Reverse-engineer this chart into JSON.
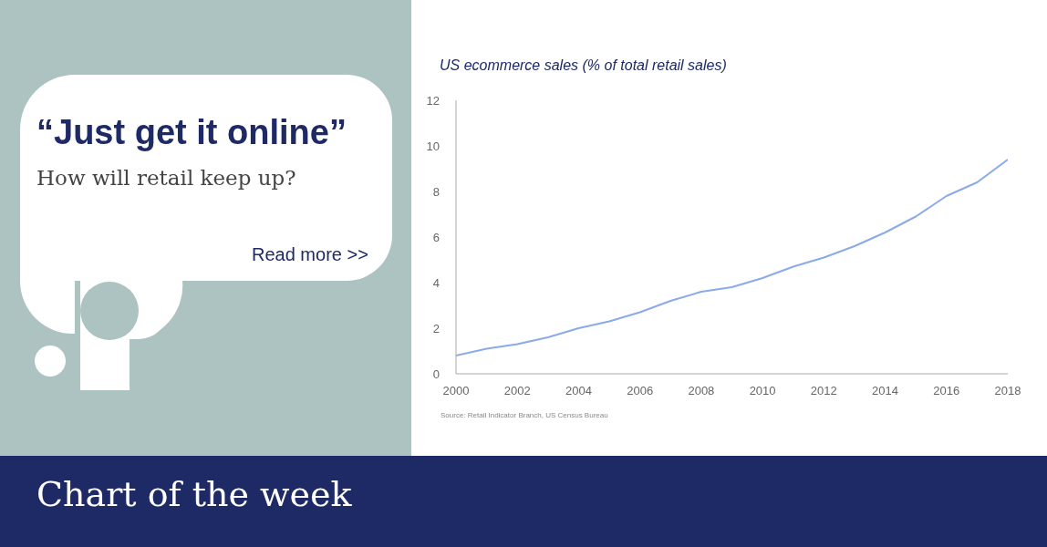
{
  "chart_data": {
    "type": "line",
    "title": "US ecommerce sales (% of total retail sales)",
    "x": [
      2000,
      2001,
      2002,
      2003,
      2004,
      2005,
      2006,
      2007,
      2008,
      2009,
      2010,
      2011,
      2012,
      2013,
      2014,
      2015,
      2016,
      2017,
      2018
    ],
    "series": [
      {
        "color": "#8aaaea",
        "values": [
          0.8,
          1.1,
          1.3,
          1.6,
          2.0,
          2.3,
          2.7,
          3.2,
          3.6,
          3.8,
          4.2,
          4.7,
          5.1,
          5.6,
          6.2,
          6.9,
          7.8,
          8.4,
          9.4
        ]
      }
    ],
    "xlim": [
      2000,
      2018
    ],
    "xticks": [
      2000,
      2002,
      2004,
      2006,
      2008,
      2010,
      2012,
      2014,
      2016,
      2018
    ],
    "ylim": [
      0,
      12
    ],
    "yticks": [
      0,
      2,
      4,
      6,
      8,
      10,
      12
    ],
    "grid": false,
    "legend": false,
    "marker": "none",
    "line_style": "solid",
    "annotations": [
      "“Just get it online”",
      "How will retail keep up?",
      "Read more >>",
      "Source: Retail Indicator Branch, US Census Bureau",
      "Chart of the week"
    ]
  }
}
